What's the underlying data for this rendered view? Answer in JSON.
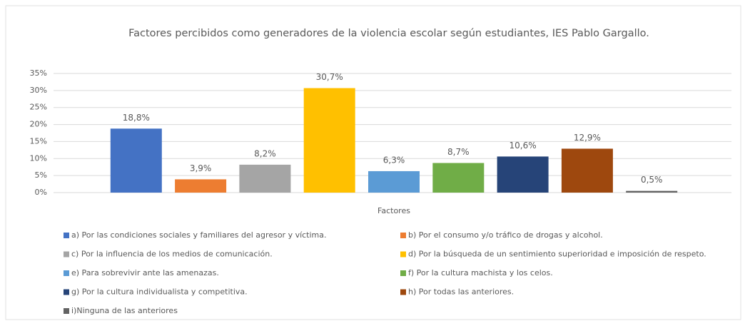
{
  "chart_data": {
    "type": "bar",
    "title": "Factores percibidos como generadores de la violencia escolar según estudiantes, IES Pablo Gargallo.",
    "xlabel": "Factores",
    "ylim": [
      0,
      35
    ],
    "yticks": [
      {
        "value": 0,
        "label": "0%"
      },
      {
        "value": 5,
        "label": "5%"
      },
      {
        "value": 10,
        "label": "10%"
      },
      {
        "value": 15,
        "label": "15%"
      },
      {
        "value": 20,
        "label": "20%"
      },
      {
        "value": 25,
        "label": "25%"
      },
      {
        "value": 30,
        "label": "30%"
      },
      {
        "value": 35,
        "label": "35%"
      }
    ],
    "grid": true,
    "legend": "bottom",
    "series": [
      {
        "name": "a) Por las condiciones sociales y familiares del agresor y víctima.",
        "color": "#4472c4",
        "values": [
          18.8
        ],
        "value_labels": [
          "18,8%"
        ]
      },
      {
        "name": "b) Por el consumo y/o tráfico de drogas y alcohol.",
        "color": "#ed7d31",
        "values": [
          3.9
        ],
        "value_labels": [
          "3,9%"
        ]
      },
      {
        "name": "c) Por la influencia de los medios de comunicación.",
        "color": "#a5a5a5",
        "values": [
          8.2
        ],
        "value_labels": [
          "8,2%"
        ]
      },
      {
        "name": "d) Por la búsqueda  de un sentimiento superioridad e imposición de respeto.",
        "color": "#ffc000",
        "values": [
          30.7
        ],
        "value_labels": [
          "30,7%"
        ]
      },
      {
        "name": "e) Para sobrevivir ante las amenazas.",
        "color": "#5b9bd5",
        "values": [
          6.3
        ],
        "value_labels": [
          "6,3%"
        ]
      },
      {
        "name": "f) Por la cultura machista y los celos.",
        "color": "#70ad47",
        "values": [
          8.7
        ],
        "value_labels": [
          "8,7%"
        ]
      },
      {
        "name": "g) Por la cultura individualista y competitiva.",
        "color": "#264478",
        "values": [
          10.6
        ],
        "value_labels": [
          "10,6%"
        ]
      },
      {
        "name": "h) Por todas las anteriores.",
        "color": "#9e480e",
        "values": [
          12.9
        ],
        "value_labels": [
          "12,9%"
        ]
      },
      {
        "name": "i)Ninguna de las anteriores",
        "color": "#636363",
        "values": [
          0.5
        ],
        "value_labels": [
          "0,5%"
        ]
      }
    ]
  }
}
